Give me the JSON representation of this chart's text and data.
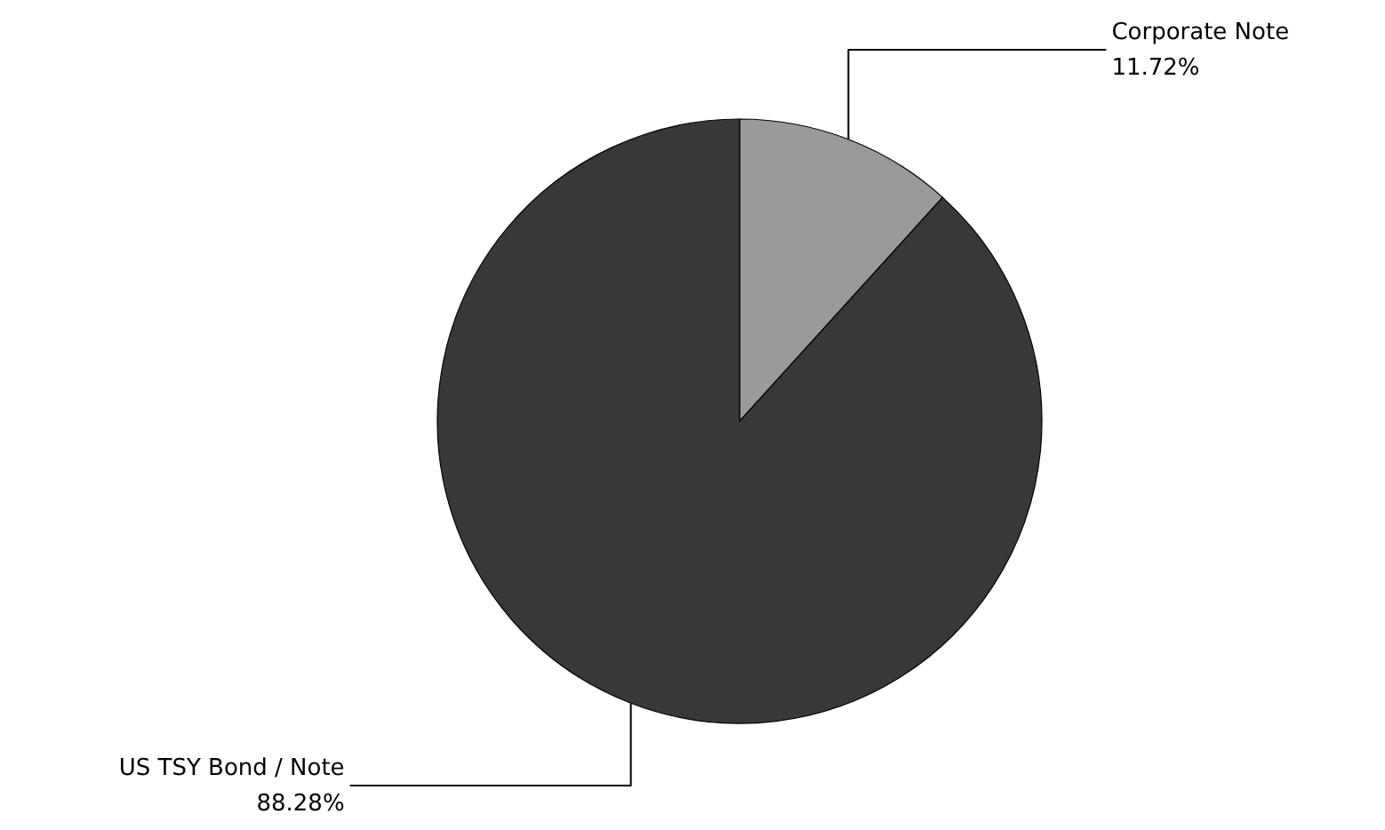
{
  "chart_data": {
    "type": "pie",
    "categories": [
      "Corporate Note",
      "US TSY Bond / Note"
    ],
    "values": [
      11.72,
      88.28
    ],
    "colors": [
      "#9a9a9a",
      "#383838"
    ],
    "value_labels": [
      "11.72%",
      "88.28%"
    ]
  }
}
